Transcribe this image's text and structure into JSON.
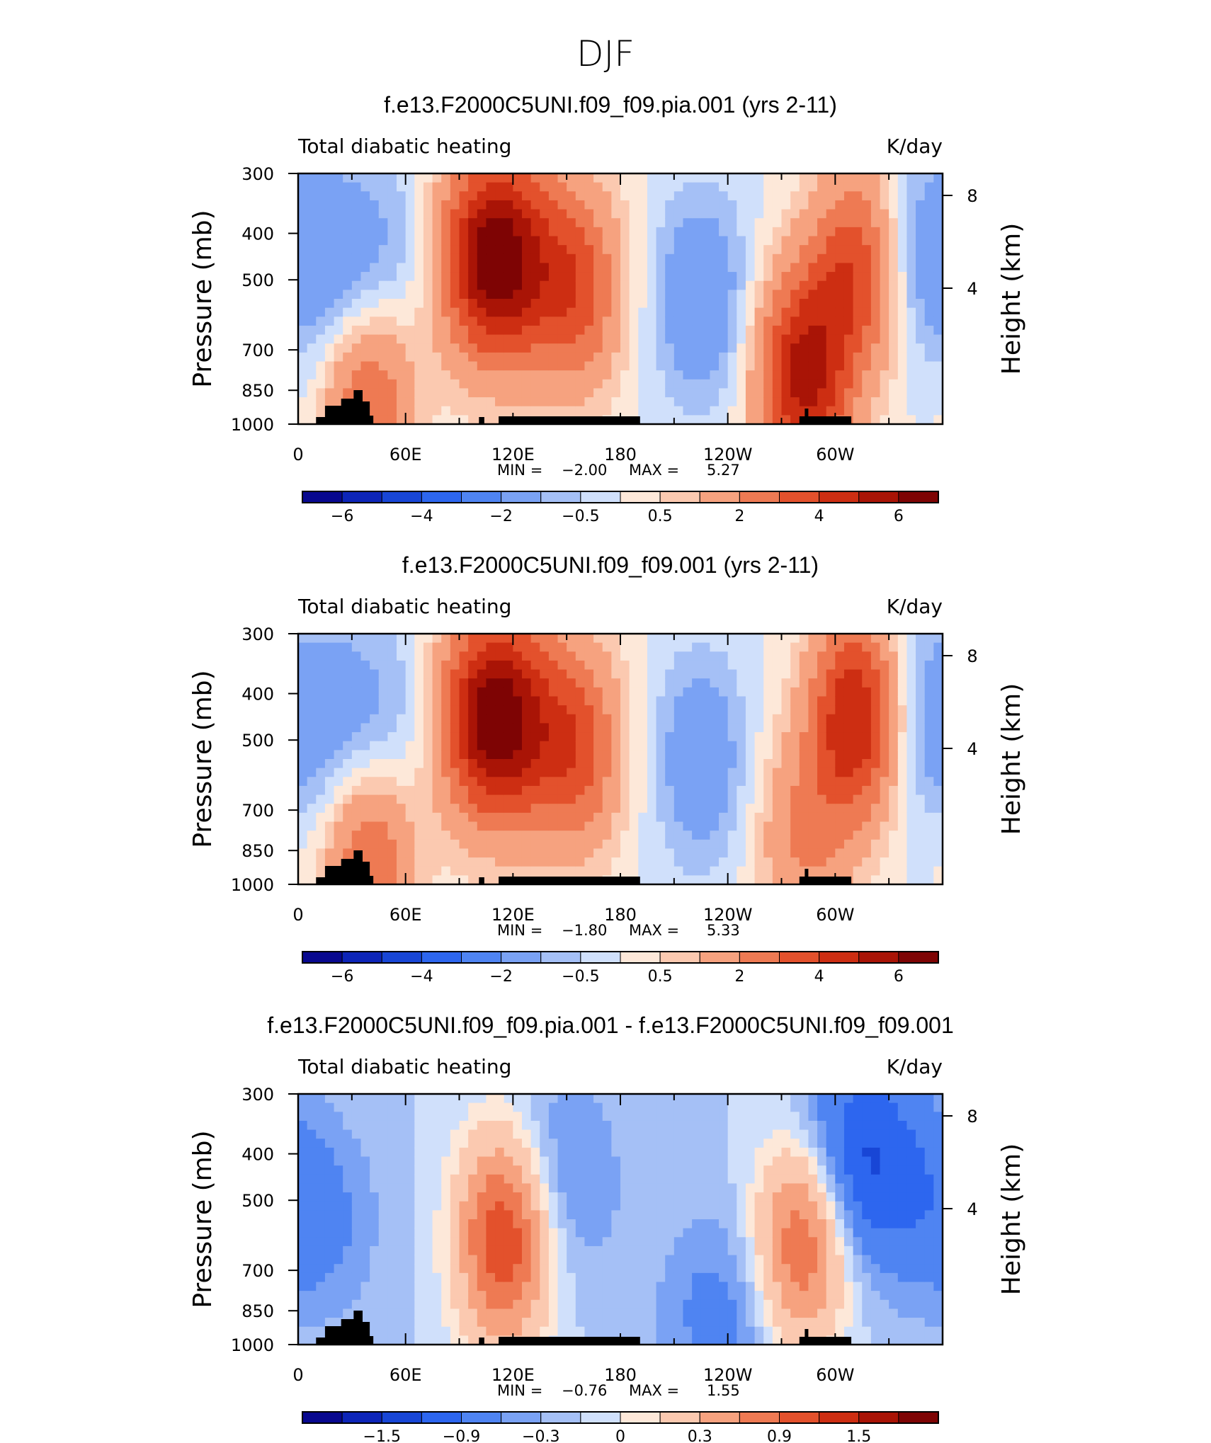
{
  "page_title": "DJF",
  "chart_data": [
    {
      "type": "heatmap",
      "title": "f.e13.F2000C5UNI.f09_f09.pia.001 (yrs 2-11)",
      "left_label": "Total diabatic heating",
      "right_label": "K/day",
      "ylabel": "Pressure (mb)",
      "y2label": "Height (km)",
      "y_ticks": [
        "300",
        "400",
        "500",
        "700",
        "850",
        "1000"
      ],
      "y2_ticks": [
        "8",
        "4"
      ],
      "x_ticks": [
        "0",
        "60E",
        "120E",
        "180",
        "120W",
        "60W"
      ],
      "min_label": "MIN =",
      "min_value": "−2.00",
      "max_label": "MAX =",
      "max_value": "5.27",
      "colorbar_labels": [
        "−6",
        "−4",
        "−2",
        "−0.5",
        "0.5",
        "2",
        "4",
        "6"
      ],
      "features": [
        {
          "lon": 12,
          "p": 450,
          "v": -1.0
        },
        {
          "lon": 40,
          "p": 900,
          "v": 3.0
        },
        {
          "lon": 45,
          "p": 450,
          "v": -1.0
        },
        {
          "lon": 100,
          "p": 450,
          "v": 4.0
        },
        {
          "lon": 120,
          "p": 450,
          "v": 4.0
        },
        {
          "lon": 155,
          "p": 520,
          "v": 3.5
        },
        {
          "lon": 225,
          "p": 550,
          "v": -2.0
        },
        {
          "lon": 282,
          "p": 800,
          "v": 5.27
        },
        {
          "lon": 312,
          "p": 480,
          "v": 4.0
        },
        {
          "lon": 345,
          "p": 450,
          "v": -1.2
        }
      ]
    },
    {
      "type": "heatmap",
      "title": "f.e13.F2000C5UNI.f09_f09.001 (yrs 2-11)",
      "left_label": "Total diabatic heating",
      "right_label": "K/day",
      "ylabel": "Pressure (mb)",
      "y2label": "Height (km)",
      "y_ticks": [
        "300",
        "400",
        "500",
        "700",
        "850",
        "1000"
      ],
      "y2_ticks": [
        "8",
        "4"
      ],
      "x_ticks": [
        "0",
        "60E",
        "120E",
        "180",
        "120W",
        "60W"
      ],
      "min_label": "MIN =",
      "min_value": "−1.80",
      "max_label": "MAX =",
      "max_value": "5.33",
      "colorbar_labels": [
        "−6",
        "−4",
        "−2",
        "−0.5",
        "0.5",
        "2",
        "4",
        "6"
      ],
      "features": [
        {
          "lon": 12,
          "p": 450,
          "v": -0.8
        },
        {
          "lon": 40,
          "p": 900,
          "v": 3.0
        },
        {
          "lon": 45,
          "p": 450,
          "v": -1.0
        },
        {
          "lon": 100,
          "p": 450,
          "v": 4.0
        },
        {
          "lon": 120,
          "p": 450,
          "v": 4.0
        },
        {
          "lon": 155,
          "p": 520,
          "v": 3.5
        },
        {
          "lon": 225,
          "p": 550,
          "v": -1.8
        },
        {
          "lon": 282,
          "p": 800,
          "v": 2.0
        },
        {
          "lon": 312,
          "p": 450,
          "v": 5.33
        },
        {
          "lon": 345,
          "p": 450,
          "v": -1.2
        }
      ]
    },
    {
      "type": "heatmap",
      "title": "f.e13.F2000C5UNI.f09_f09.pia.001 - f.e13.F2000C5UNI.f09_f09.001",
      "left_label": "Total diabatic heating",
      "right_label": "K/day",
      "ylabel": "Pressure (mb)",
      "y2label": "Height (km)",
      "y_ticks": [
        "300",
        "400",
        "500",
        "700",
        "850",
        "1000"
      ],
      "y2_ticks": [
        "8",
        "4"
      ],
      "x_ticks": [
        "0",
        "60E",
        "120E",
        "180",
        "120W",
        "60W"
      ],
      "min_label": "MIN =",
      "min_value": "−0.76",
      "max_label": "MAX =",
      "max_value": "1.55",
      "colorbar_labels": [
        "−1.5",
        "−0.9",
        "−0.3",
        "0",
        "0.3",
        "0.9",
        "1.5"
      ],
      "features": [
        {
          "lon": 10,
          "p": 550,
          "v": -0.4
        },
        {
          "lon": 115,
          "p": 600,
          "v": 1.55
        },
        {
          "lon": 145,
          "p": 450,
          "v": -0.4
        },
        {
          "lon": 235,
          "p": 870,
          "v": -0.4
        },
        {
          "lon": 282,
          "p": 600,
          "v": 1.3
        },
        {
          "lon": 310,
          "p": 400,
          "v": -0.76
        },
        {
          "lon": 330,
          "p": 450,
          "v": -0.3
        }
      ]
    }
  ],
  "colors": {
    "palette": [
      "#08088f",
      "#0d25b8",
      "#1846d6",
      "#2d66ef",
      "#4f84f2",
      "#7aa2f4",
      "#a5c0f6",
      "#d0e0fb",
      "#fde8d9",
      "#fbc9b0",
      "#f6a27f",
      "#ee7a53",
      "#e3512c",
      "#cd2e12",
      "#a91406",
      "#7e0404"
    ],
    "land": "#000000"
  }
}
